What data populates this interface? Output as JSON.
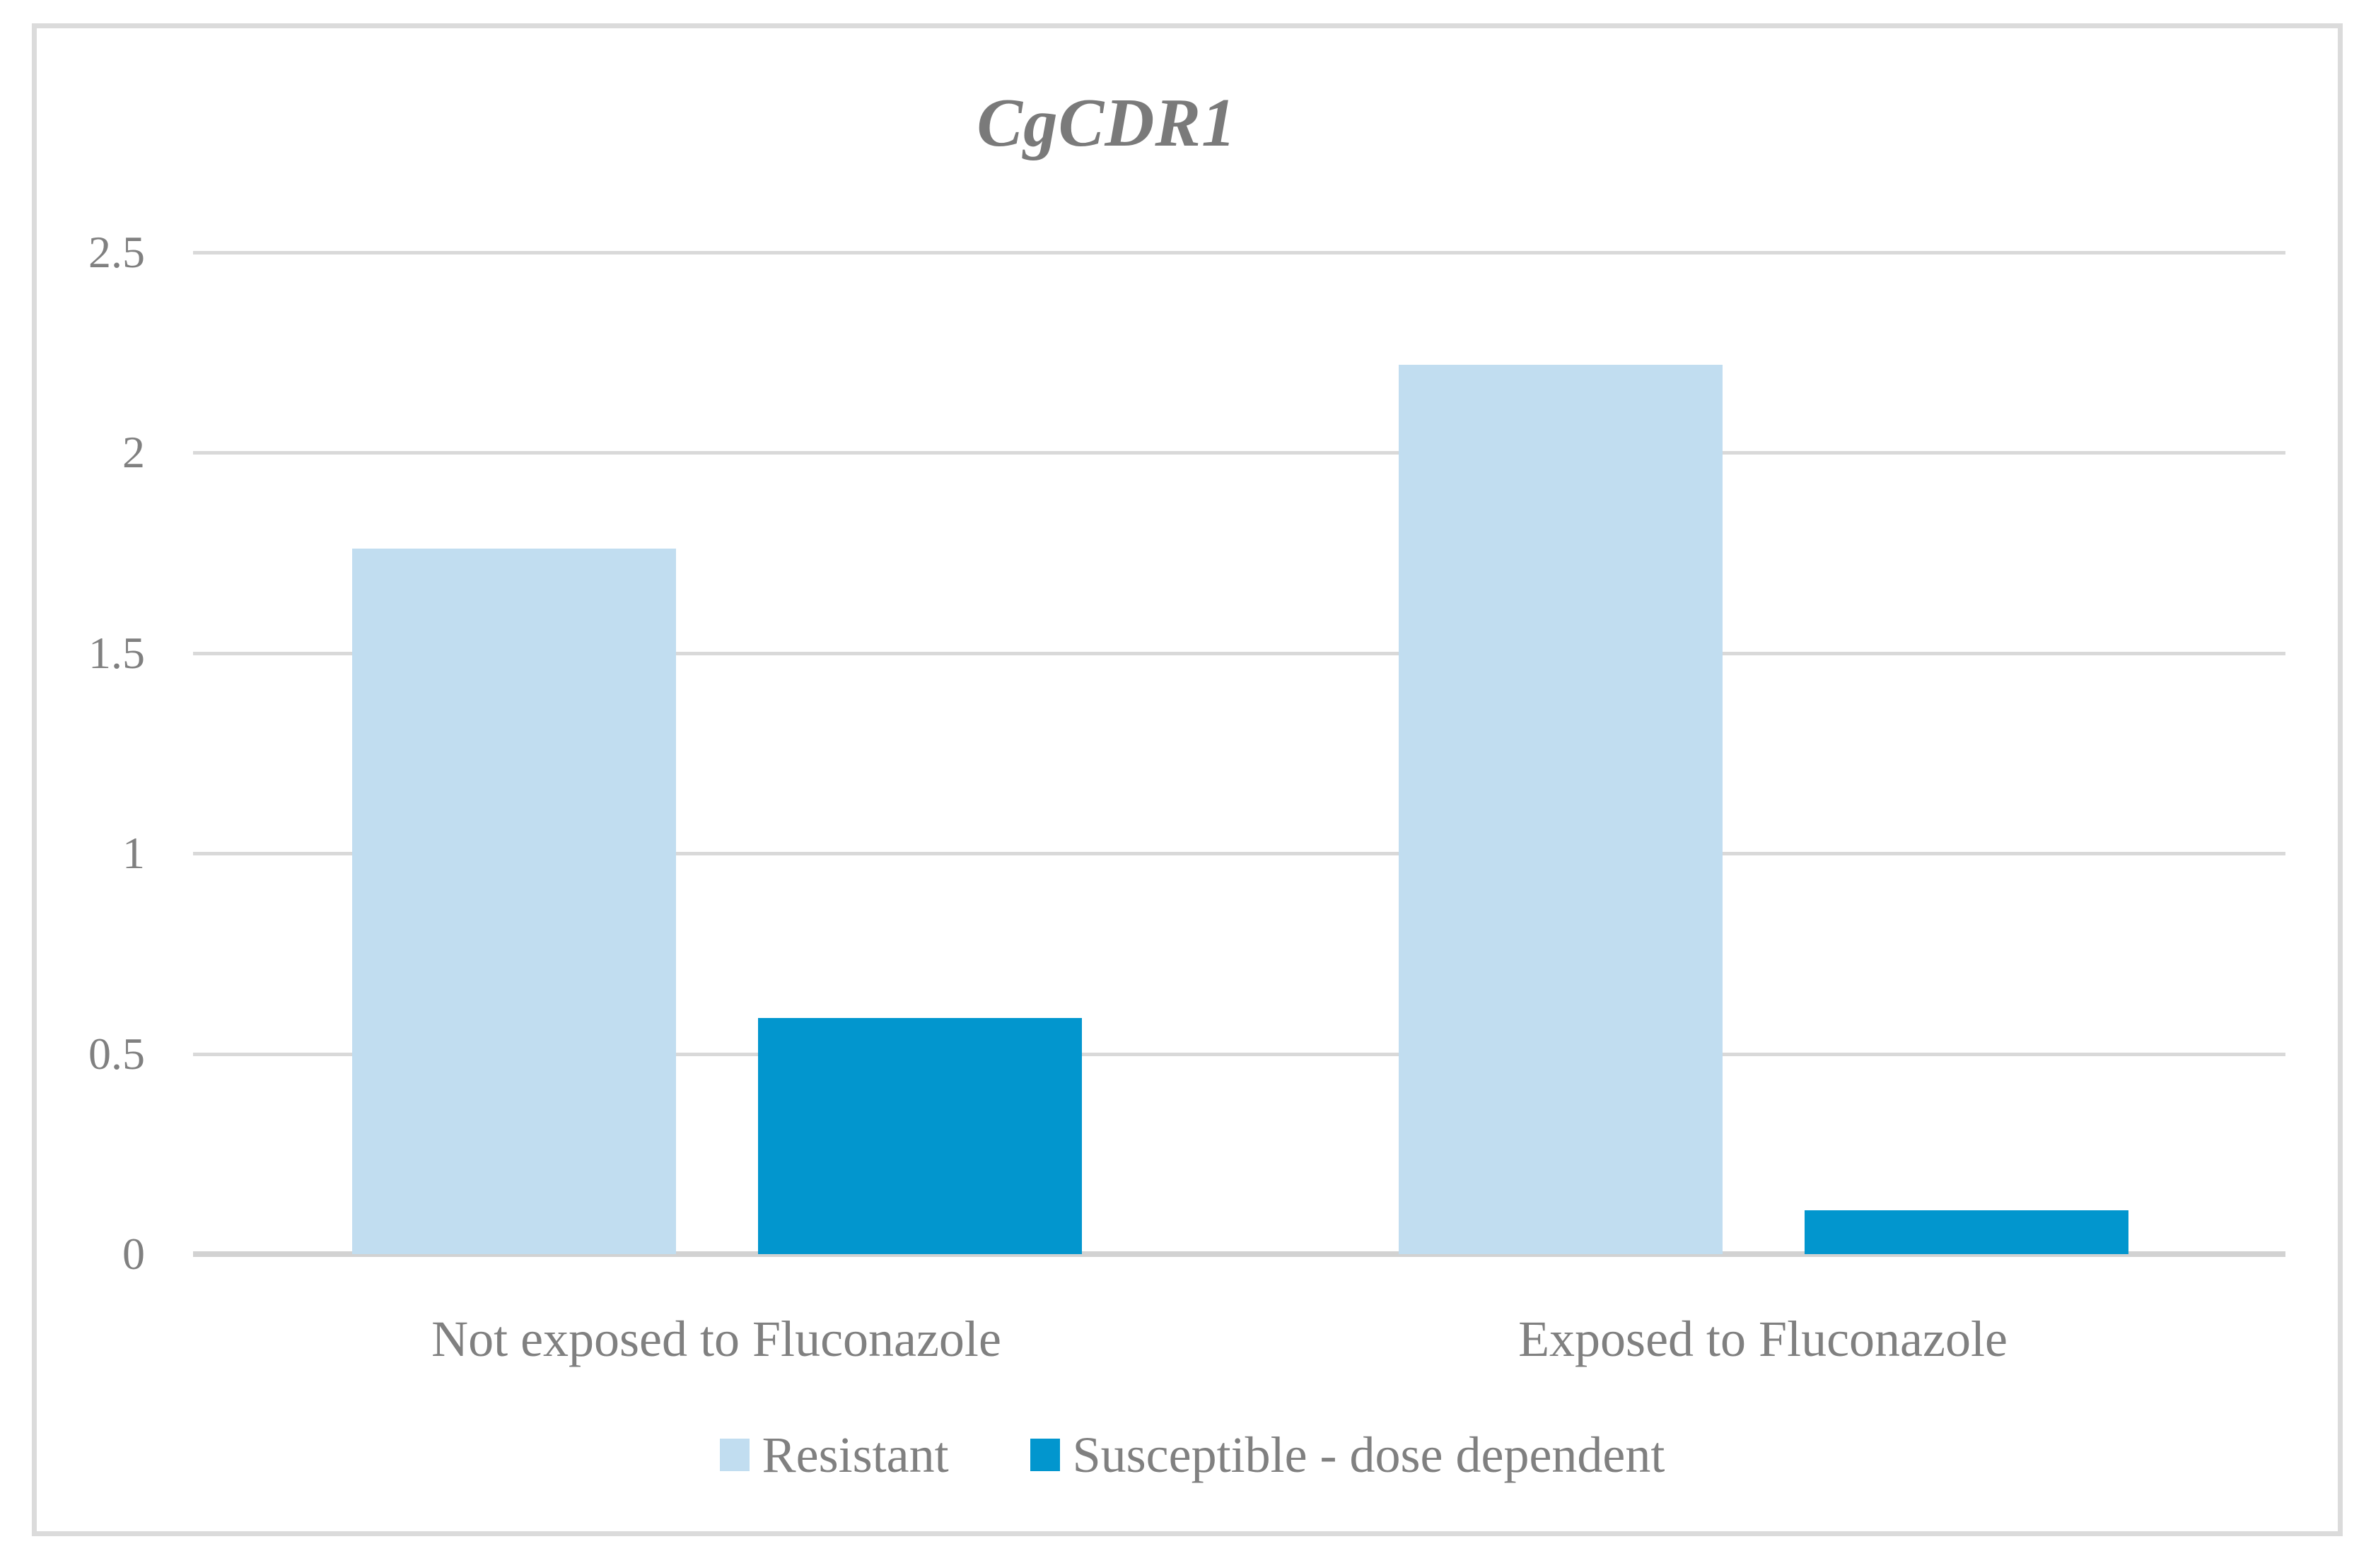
{
  "chart_data": {
    "type": "bar",
    "title": "CgCDR1",
    "categories": [
      "Not exposed to Fluconazole",
      "Exposed to Fluconazole"
    ],
    "series": [
      {
        "name": "Resistant",
        "color": "#C1DDF0",
        "values": [
          1.76,
          2.22
        ]
      },
      {
        "name": "Susceptible - dose dependent",
        "color": "#0296CE",
        "values": [
          0.59,
          0.11
        ]
      }
    ],
    "xlabel": "",
    "ylabel": "",
    "ylim": [
      0,
      2.5
    ],
    "yticks": [
      "0",
      "0.5",
      "1",
      "1.5",
      "2",
      "2.5"
    ],
    "grid": true,
    "legend_position": "bottom"
  },
  "colors": {
    "title_text": "#7A7A7A",
    "axis_text": "#808080",
    "gridline": "#D9D9D9",
    "axis_line": "#D2D2D2",
    "frame_border": "#DBDBDB",
    "background": "#FFFFFF"
  }
}
